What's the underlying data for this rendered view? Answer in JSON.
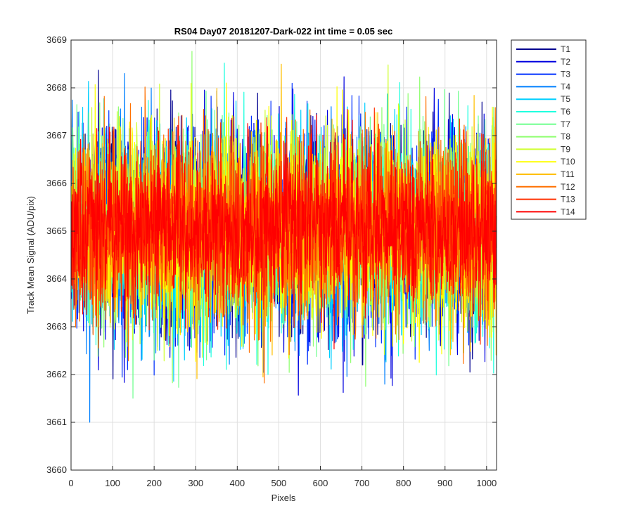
{
  "chart_data": {
    "type": "line",
    "title": "RS04 Day07 20181207-Dark-022 int time = 0.05 sec",
    "xlabel": "Pixels",
    "ylabel": "Track Mean Signal (ADU/pix)",
    "xlim": [
      0,
      1024
    ],
    "ylim": [
      3660,
      3669
    ],
    "xticks": [
      0,
      100,
      200,
      300,
      400,
      500,
      600,
      700,
      800,
      900,
      1000
    ],
    "yticks": [
      3660,
      3661,
      3662,
      3663,
      3664,
      3665,
      3666,
      3667,
      3668,
      3669
    ],
    "grid": true,
    "legend_position": "outside-top-right",
    "series": [
      {
        "name": "T1",
        "color": "#00008f",
        "center": 3665.0,
        "spread": 1.1
      },
      {
        "name": "T2",
        "color": "#0000df",
        "center": 3665.0,
        "spread": 1.1
      },
      {
        "name": "T3",
        "color": "#0030ff",
        "center": 3665.0,
        "spread": 1.05
      },
      {
        "name": "T4",
        "color": "#0080ff",
        "center": 3665.0,
        "spread": 1.05
      },
      {
        "name": "T5",
        "color": "#00cfff",
        "center": 3665.0,
        "spread": 1.0
      },
      {
        "name": "T6",
        "color": "#20ffdf",
        "center": 3665.0,
        "spread": 1.0
      },
      {
        "name": "T7",
        "color": "#70ff8f",
        "center": 3665.0,
        "spread": 1.0
      },
      {
        "name": "T8",
        "color": "#8fff70",
        "center": 3665.0,
        "spread": 1.0
      },
      {
        "name": "T9",
        "color": "#cfff30",
        "center": 3665.0,
        "spread": 1.0
      },
      {
        "name": "T10",
        "color": "#ffff00",
        "center": 3665.0,
        "spread": 1.0
      },
      {
        "name": "T11",
        "color": "#ffbf00",
        "center": 3665.0,
        "spread": 0.95
      },
      {
        "name": "T12",
        "color": "#ff7000",
        "center": 3665.0,
        "spread": 0.95
      },
      {
        "name": "T13",
        "color": "#ff3000",
        "center": 3665.1,
        "spread": 0.85
      },
      {
        "name": "T14",
        "color": "#ff0000",
        "center": 3665.1,
        "spread": 0.8
      }
    ]
  }
}
